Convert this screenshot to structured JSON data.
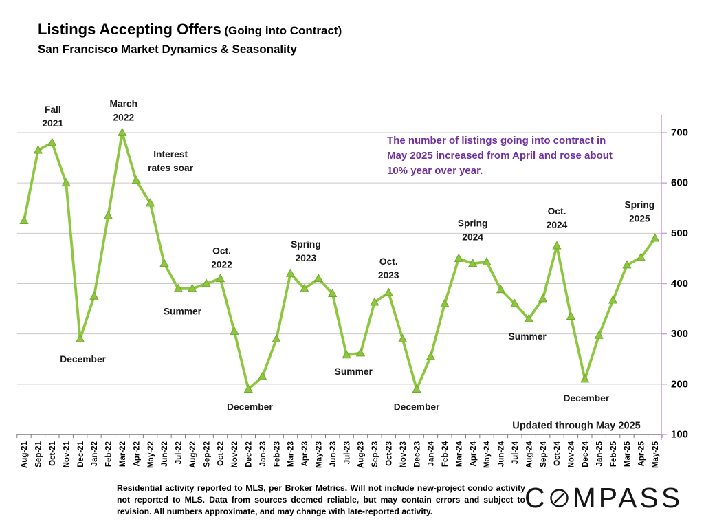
{
  "title": {
    "main": "Listings Accepting Offers",
    "paren": "(Going into Contract)",
    "subtitle": "San Francisco Market Dynamics & Seasonality"
  },
  "callout": {
    "text": "The number of listings going into contract in May 2025 increased from April and rose about 10% year over year.",
    "color": "#7030A0"
  },
  "chart_data": {
    "type": "line",
    "title": "Listings Accepting Offers (Going into Contract)",
    "xlabel": "",
    "ylabel": "",
    "ylim": [
      100,
      700
    ],
    "yticks": [
      100,
      200,
      300,
      400,
      500,
      600,
      700
    ],
    "grid": "horizontal",
    "legend": "none",
    "categories": [
      "Aug-21",
      "Sep-21",
      "Oct-21",
      "Nov-21",
      "Dec-21",
      "Jan-22",
      "Feb-22",
      "Mar-22",
      "Apr-22",
      "May-22",
      "Jun-22",
      "Jul-22",
      "Aug-22",
      "Sep-22",
      "Oct-22",
      "Nov-22",
      "Dec-22",
      "Jan-23",
      "Feb-23",
      "Mar-23",
      "Apr-23",
      "May-23",
      "Jun-23",
      "Jul-23",
      "Aug-23",
      "Sep-23",
      "Oct-23",
      "Nov-23",
      "Dec-23",
      "Jan-24",
      "Feb-24",
      "Mar-24",
      "Apr-24",
      "May-24",
      "Jun-24",
      "Jul-24",
      "Aug-24",
      "Sep-24",
      "Oct-24",
      "Nov-24",
      "Dec-24",
      "Jan-25",
      "Feb-25",
      "Mar-25",
      "Apr-25",
      "May-25"
    ],
    "series": [
      {
        "name": "Listings accepting offers",
        "values": [
          525,
          665,
          680,
          600,
          290,
          375,
          535,
          700,
          605,
          560,
          440,
          390,
          390,
          400,
          410,
          305,
          190,
          215,
          290,
          420,
          390,
          410,
          380,
          258,
          262,
          363,
          382,
          290,
          190,
          255,
          360,
          450,
          440,
          443,
          388,
          360,
          330,
          370,
          475,
          335,
          210,
          297,
          367,
          437,
          452,
          490
        ]
      }
    ],
    "colors": {
      "line": "#8DC63F",
      "marker_edge": "#6FA82A",
      "grid": "#C9C9C9",
      "x_axis": "#7A7A7A",
      "right_axis": "#C9A0E8",
      "tick_label": "#000000",
      "annotation": "#1A1A1A"
    },
    "annotations": [
      {
        "text": "Fall\n2021",
        "xi": 2.05,
        "v": 732
      },
      {
        "text": "March\n2022",
        "xi": 7.1,
        "v": 744
      },
      {
        "text": "Interest\nrates soar",
        "xi": 10.45,
        "v": 643
      },
      {
        "text": "December",
        "xi": 4.2,
        "v": 250
      },
      {
        "text": "Summer",
        "xi": 11.3,
        "v": 345
      },
      {
        "text": "Oct.\n2022",
        "xi": 14.1,
        "v": 451
      },
      {
        "text": "December",
        "xi": 16.1,
        "v": 155
      },
      {
        "text": "Spring\n2023",
        "xi": 20.1,
        "v": 464
      },
      {
        "text": "Summer",
        "xi": 23.5,
        "v": 225
      },
      {
        "text": "Oct.\n2023",
        "xi": 26.0,
        "v": 430
      },
      {
        "text": "December",
        "xi": 28.0,
        "v": 155
      },
      {
        "text": "Spring\n2024",
        "xi": 32.0,
        "v": 506
      },
      {
        "text": "Summer",
        "xi": 35.9,
        "v": 295
      },
      {
        "text": "Oct.\n2024",
        "xi": 38.0,
        "v": 530
      },
      {
        "text": "December",
        "xi": 40.1,
        "v": 172
      },
      {
        "text": "Spring\n2025",
        "xi": 43.9,
        "v": 543
      }
    ],
    "updated_label": {
      "text": "Updated through May 2025",
      "xi": 39.4,
      "v": 117
    }
  },
  "footer": {
    "disclaimer": "Residential activity reported to MLS, per Broker Metrics. Will not include new-project condo activity not reported to MLS. Data from sources deemed reliable, but may contain errors and subject to revision. All numbers approximate, and may change with late-reported activity.",
    "logo_text": "COMPASS"
  }
}
